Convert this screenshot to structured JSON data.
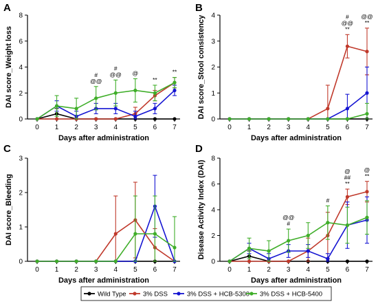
{
  "legend": [
    {
      "label": "Wild Type",
      "color": "#000000"
    },
    {
      "label": "3% DSS",
      "color": "#c0392b"
    },
    {
      "label": "3% DSS + HCB-5300",
      "color": "#1414d2"
    },
    {
      "label": "3% DSS + HCB-5400",
      "color": "#3fae29"
    }
  ],
  "chart_data": [
    {
      "panel": "A",
      "type": "line",
      "ylabel": "DAI score_Weight loss",
      "xlabel": "Days after administration",
      "x": [
        0,
        1,
        2,
        3,
        4,
        5,
        6,
        7
      ],
      "ylim": [
        0,
        8
      ],
      "yticks": [
        0,
        2,
        4,
        6,
        8
      ],
      "series": [
        {
          "name": "Wild Type",
          "values": [
            0,
            0.4,
            0,
            0,
            0,
            0,
            0,
            0
          ],
          "errors": [
            0,
            0.4,
            0,
            0,
            0,
            0,
            0,
            0
          ]
        },
        {
          "name": "3% DSS",
          "values": [
            0,
            0,
            0,
            0,
            0,
            0.4,
            1.8,
            2.8
          ],
          "errors": [
            0,
            0,
            0,
            0,
            0,
            0.5,
            0.4,
            0.4
          ]
        },
        {
          "name": "3% DSS + HCB-5300",
          "values": [
            0,
            1.0,
            0.2,
            0.8,
            0.8,
            0.2,
            0.8,
            2.2
          ],
          "errors": [
            0,
            0.4,
            0.4,
            0.4,
            0.4,
            0.4,
            0.4,
            0.4
          ]
        },
        {
          "name": "3% DSS + HCB-5400",
          "values": [
            0,
            1.0,
            0.8,
            1.6,
            2.0,
            2.2,
            2.0,
            2.8
          ],
          "errors": [
            0,
            0.8,
            0.8,
            0.9,
            1.0,
            0.9,
            0.6,
            0.4
          ]
        }
      ],
      "annotations": [
        {
          "x": 3,
          "lines": [
            "#",
            "@@"
          ]
        },
        {
          "x": 4,
          "lines": [
            "#",
            "@@"
          ]
        },
        {
          "x": 5,
          "lines": [
            "@"
          ]
        },
        {
          "x": 6,
          "lines": [
            "**"
          ]
        },
        {
          "x": 7,
          "lines": [
            "**"
          ]
        }
      ]
    },
    {
      "panel": "B",
      "type": "line",
      "ylabel": "DAI score_Stool consistency",
      "xlabel": "Days after administration",
      "x": [
        0,
        1,
        2,
        3,
        4,
        5,
        6,
        7
      ],
      "ylim": [
        0,
        4
      ],
      "yticks": [
        0,
        1,
        2,
        3,
        4
      ],
      "series": [
        {
          "name": "Wild Type",
          "values": [
            0,
            0,
            0,
            0,
            0,
            0,
            0,
            0
          ],
          "errors": [
            0,
            0,
            0,
            0,
            0,
            0,
            0,
            0
          ]
        },
        {
          "name": "3% DSS",
          "values": [
            0,
            0,
            0,
            0,
            0,
            0.4,
            2.8,
            2.6
          ],
          "errors": [
            0,
            0,
            0,
            0,
            0,
            0.9,
            0.45,
            0.9
          ]
        },
        {
          "name": "3% DSS + HCB-5300",
          "values": [
            0,
            0,
            0,
            0,
            0,
            0,
            0.4,
            1.0
          ],
          "errors": [
            0,
            0,
            0,
            0,
            0,
            0,
            0.55,
            1.0
          ]
        },
        {
          "name": "3% DSS + HCB-5400",
          "values": [
            0,
            0,
            0,
            0,
            0,
            0,
            0,
            0.2
          ],
          "errors": [
            0,
            0,
            0,
            0,
            0,
            0,
            0,
            0.4
          ]
        }
      ],
      "annotations": [
        {
          "x": 6,
          "lines": [
            "#",
            "@@",
            "**"
          ]
        },
        {
          "x": 7,
          "lines": [
            "@@",
            "**"
          ]
        }
      ]
    },
    {
      "panel": "C",
      "type": "line",
      "ylabel": "DAI score_Bleeding",
      "xlabel": "Days after administration",
      "x": [
        0,
        1,
        2,
        3,
        4,
        5,
        6,
        7
      ],
      "ylim": [
        0,
        3
      ],
      "yticks": [
        0,
        1,
        2,
        3
      ],
      "series": [
        {
          "name": "Wild Type",
          "values": [
            0,
            0,
            0,
            0,
            0,
            0,
            0,
            0
          ],
          "errors": [
            0,
            0,
            0,
            0,
            0,
            0,
            0,
            0
          ]
        },
        {
          "name": "3% DSS",
          "values": [
            0,
            0,
            0,
            0,
            0.8,
            1.2,
            0.4,
            0
          ],
          "errors": [
            0,
            0,
            0,
            0,
            1.1,
            1.1,
            0.55,
            0
          ]
        },
        {
          "name": "3% DSS + HCB-5300",
          "values": [
            0,
            0,
            0,
            0,
            0,
            0,
            1.6,
            0
          ],
          "errors": [
            0,
            0,
            0,
            0,
            0,
            0,
            0.9,
            0
          ]
        },
        {
          "name": "3% DSS + HCB-5400",
          "values": [
            0,
            0,
            0,
            0,
            0,
            0.8,
            0.8,
            0.4
          ],
          "errors": [
            0,
            0,
            0,
            0,
            0,
            1.1,
            1.1,
            0.9
          ]
        }
      ],
      "annotations": []
    },
    {
      "panel": "D",
      "type": "line",
      "ylabel": "Disease Activity Index (DAI)",
      "xlabel": "Days after administration",
      "x": [
        0,
        1,
        2,
        3,
        4,
        5,
        6,
        7
      ],
      "ylim": [
        0,
        8
      ],
      "yticks": [
        0,
        2,
        4,
        6,
        8
      ],
      "series": [
        {
          "name": "Wild Type",
          "values": [
            0,
            0.4,
            0,
            0,
            0,
            0,
            0,
            0
          ],
          "errors": [
            0,
            0.4,
            0,
            0,
            0,
            0,
            0,
            0
          ]
        },
        {
          "name": "3% DSS",
          "values": [
            0,
            0,
            0,
            0,
            0.8,
            2.0,
            5.0,
            5.4
          ],
          "errors": [
            0,
            0,
            0,
            0,
            1.0,
            1.8,
            0.6,
            0.8
          ]
        },
        {
          "name": "3% DSS + HCB-5300",
          "values": [
            0,
            1.0,
            0.2,
            0.8,
            0.8,
            0.2,
            2.8,
            3.2
          ],
          "errors": [
            0,
            0.4,
            0.4,
            0.5,
            0.5,
            0.4,
            1.8,
            1.8
          ]
        },
        {
          "name": "3% DSS + HCB-5400",
          "values": [
            0,
            1.0,
            0.8,
            1.6,
            2.0,
            3.0,
            2.8,
            3.4
          ],
          "errors": [
            0,
            0.8,
            0.8,
            0.9,
            1.0,
            1.3,
            1.4,
            1.3
          ]
        }
      ],
      "annotations": [
        {
          "x": 3,
          "lines": [
            "@@",
            "#"
          ]
        },
        {
          "x": 5,
          "lines": [
            "#"
          ]
        },
        {
          "x": 6,
          "lines": [
            "@",
            "##",
            "**"
          ]
        },
        {
          "x": 7,
          "lines": [
            "@",
            "**"
          ]
        }
      ]
    }
  ]
}
